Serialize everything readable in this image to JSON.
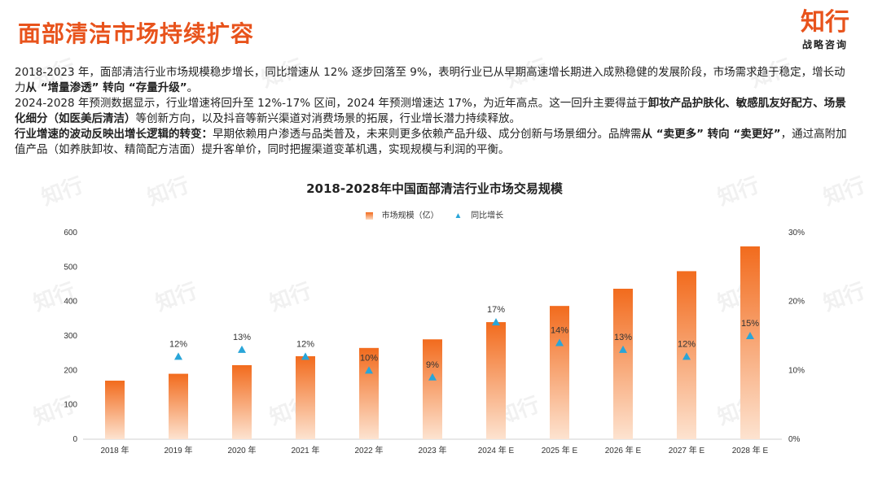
{
  "header": {
    "title": "面部清洁市场持续扩容",
    "logo_main": "知行",
    "logo_sub": "战略咨询"
  },
  "paragraphs": [
    {
      "segments": [
        {
          "text": "2018-2023 年，面部清洁行业市场规模稳步增长，同比增速从 12% 逐步回落至 9%，表明行业已从早期高速增长期进入成熟稳健的发展阶段，市场需求趋于稳定，增长动力",
          "bold": false
        },
        {
          "text": "从 “增量渗透” 转向 “存量升级”",
          "bold": true
        },
        {
          "text": "。",
          "bold": false
        }
      ]
    },
    {
      "segments": [
        {
          "text": "2024-2028 年预测数据显示，行业增速将回升至 12%-17% 区间，2024 年预测增速达 17%，为近年高点。这一回升主要得益于",
          "bold": false
        },
        {
          "text": "卸妆产品护肤化、敏感肌友好配方、场景化细分（如医美后清洁）",
          "bold": true
        },
        {
          "text": "等创新方向，以及抖音等新兴渠道对消费场景的拓展，行业增长潜力持续释放。",
          "bold": false
        }
      ]
    },
    {
      "segments": [
        {
          "text": "行业增速的波动反映出增长逻辑的转变：",
          "bold": true
        },
        {
          "text": "早期依赖用户渗透与品类普及，未来则更多依赖产品升级、成分创新与场景细分。品牌需",
          "bold": false
        },
        {
          "text": "从 “卖更多” 转向 “卖更好”",
          "bold": true
        },
        {
          "text": "，通过高附加值产品（如养肤卸妆、精简配方洁面）提升客单价，同时把握渠道变革机遇，实现规模与利润的平衡。",
          "bold": false
        }
      ]
    }
  ],
  "watermark": "知行",
  "chart_data": {
    "type": "bar",
    "title": "2018-2028年中国面部清洁行业市场交易规模",
    "categories": [
      "2018 年",
      "2019 年",
      "2020 年",
      "2021 年",
      "2022 年",
      "2023 年",
      "2024 年 E",
      "2025 年 E",
      "2026 年 E",
      "2027 年 E",
      "2028 年 E"
    ],
    "series": [
      {
        "name": "市场规模（亿）",
        "type": "bar",
        "axis": "left",
        "values": [
          170,
          190,
          215,
          241,
          265,
          290,
          340,
          387,
          437,
          488,
          560
        ]
      },
      {
        "name": "同比增长",
        "type": "scatter",
        "axis": "right",
        "values": [
          null,
          12,
          13,
          12,
          10,
          9,
          17,
          14,
          13,
          12,
          15
        ],
        "labels": [
          "",
          "12%",
          "13%",
          "12%",
          "10%",
          "9%",
          "17%",
          "14%",
          "13%",
          "12%",
          "15%"
        ]
      }
    ],
    "ylim_left": [
      0,
      600
    ],
    "yticks_left": [
      "0",
      "100",
      "200",
      "300",
      "400",
      "500",
      "600"
    ],
    "ylim_right": [
      0,
      30
    ],
    "yticks_right": [
      "0%",
      "10%",
      "20%",
      "30%"
    ],
    "legend_position": "top-center",
    "grid": false,
    "colors": {
      "bar_top": "#f26b1d",
      "bar_bottom": "#fde3d0",
      "marker": "#29a5d8"
    }
  }
}
